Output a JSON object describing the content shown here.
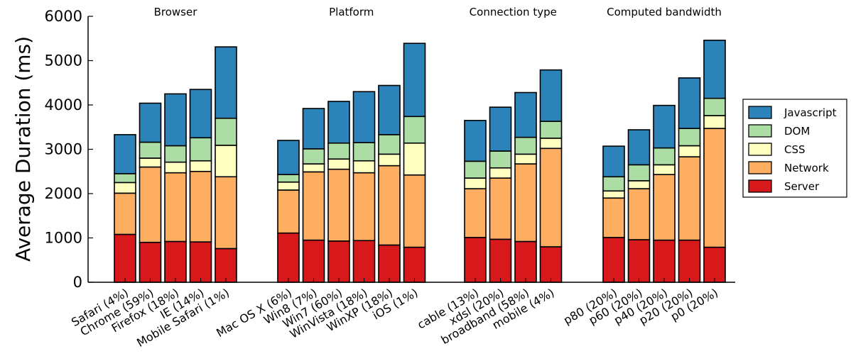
{
  "chart_data": {
    "type": "bar",
    "stacked": true,
    "ylabel": "Average Duration (ms)",
    "ylim": [
      0,
      6000
    ],
    "yticks": [
      0,
      1000,
      2000,
      3000,
      4000,
      5000,
      6000
    ],
    "grid": false,
    "legend_position": "right",
    "series": [
      {
        "name": "Server",
        "color": "#d7191c"
      },
      {
        "name": "Network",
        "color": "#fdae61"
      },
      {
        "name": "CSS",
        "color": "#ffffbf"
      },
      {
        "name": "DOM",
        "color": "#abdda4"
      },
      {
        "name": "Javascript",
        "color": "#2b83ba"
      }
    ],
    "legend_order": [
      "Javascript",
      "DOM",
      "CSS",
      "Network",
      "Server"
    ],
    "groups": [
      {
        "title": "Browser",
        "categories": [
          "Safari (4%)",
          "Chrome (59%)",
          "Firefox (18%)",
          "IE (14%)",
          "Mobile Safari (1%)"
        ],
        "values": {
          "Server": [
            1080,
            900,
            920,
            910,
            760
          ],
          "Network": [
            930,
            1700,
            1550,
            1590,
            1620
          ],
          "CSS": [
            240,
            200,
            240,
            240,
            710
          ],
          "DOM": [
            200,
            360,
            370,
            520,
            610
          ],
          "Javascript": [
            880,
            880,
            1170,
            1090,
            1610
          ]
        }
      },
      {
        "title": "Platform",
        "categories": [
          "Mac OS X (6%)",
          "Win8 (7%)",
          "Win7 (60%)",
          "WinVista (18%)",
          "WinXP (18%)",
          "iOS (1%)"
        ],
        "values": {
          "Server": [
            1110,
            950,
            930,
            940,
            840,
            790
          ],
          "Network": [
            970,
            1540,
            1620,
            1530,
            1790,
            1630
          ],
          "CSS": [
            180,
            180,
            230,
            270,
            260,
            720
          ],
          "DOM": [
            170,
            340,
            360,
            410,
            440,
            600
          ],
          "Javascript": [
            770,
            910,
            940,
            1150,
            1110,
            1650
          ]
        }
      },
      {
        "title": "Connection type",
        "categories": [
          "cable (13%)",
          "xdsl (20%)",
          "broadband (58%)",
          "mobile (4%)"
        ],
        "values": {
          "Server": [
            1010,
            970,
            920,
            800
          ],
          "Network": [
            1100,
            1380,
            1750,
            2220
          ],
          "CSS": [
            240,
            230,
            220,
            230
          ],
          "DOM": [
            380,
            380,
            380,
            380
          ],
          "Javascript": [
            920,
            990,
            1010,
            1160
          ]
        }
      },
      {
        "title": "Computed bandwidth",
        "categories": [
          "p80 (20%)",
          "p60 (20%)",
          "p40 (20%)",
          "p20 (20%)",
          "p0 (20%)"
        ],
        "values": {
          "Server": [
            1010,
            960,
            950,
            950,
            790
          ],
          "Network": [
            890,
            1150,
            1480,
            1880,
            2680
          ],
          "CSS": [
            160,
            180,
            220,
            250,
            290
          ],
          "DOM": [
            320,
            360,
            380,
            390,
            390
          ],
          "Javascript": [
            690,
            790,
            960,
            1140,
            1310
          ]
        }
      }
    ]
  }
}
